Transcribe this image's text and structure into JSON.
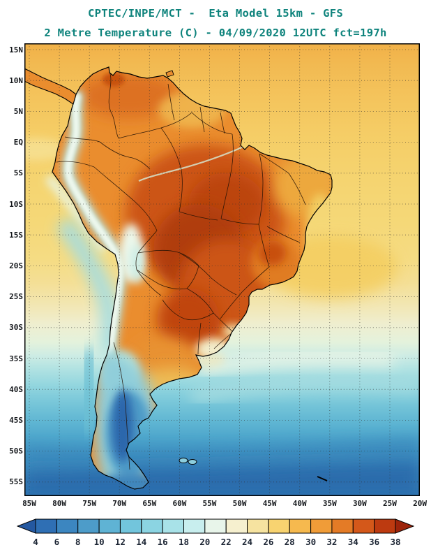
{
  "header": {
    "title_line1": "CPTEC/INPE/MCT -  Eta Model 15km - GFS",
    "title_line2": "2 Metre Temperature (C) - 04/09/2020 12UTC fct=197h",
    "title_color": "#0e837c"
  },
  "map": {
    "lat_labels": [
      "15N",
      "10N",
      "5N",
      "EQ",
      "5S",
      "10S",
      "15S",
      "20S",
      "25S",
      "30S",
      "35S",
      "40S",
      "45S",
      "50S",
      "55S"
    ],
    "lon_labels": [
      "85W",
      "80W",
      "75W",
      "70W",
      "65W",
      "60W",
      "55W",
      "50W",
      "45W",
      "40W",
      "35W",
      "30W",
      "25W",
      "20W"
    ]
  },
  "colorbar": {
    "tick_labels": [
      "4",
      "6",
      "8",
      "10",
      "12",
      "14",
      "16",
      "18",
      "20",
      "22",
      "24",
      "26",
      "28",
      "30",
      "32",
      "34",
      "36",
      "38"
    ],
    "colors": [
      "#2458a0",
      "#2f6fb4",
      "#3c86c0",
      "#4d9cc9",
      "#5fb3d4",
      "#72c5dc",
      "#8bd4e2",
      "#a8e2e8",
      "#c8eeee",
      "#e8f5ea",
      "#f6f0cf",
      "#f6e3a0",
      "#f8d370",
      "#f6b94e",
      "#f09c38",
      "#e47b26",
      "#d4581a",
      "#bd3a10",
      "#9c230a"
    ]
  }
}
